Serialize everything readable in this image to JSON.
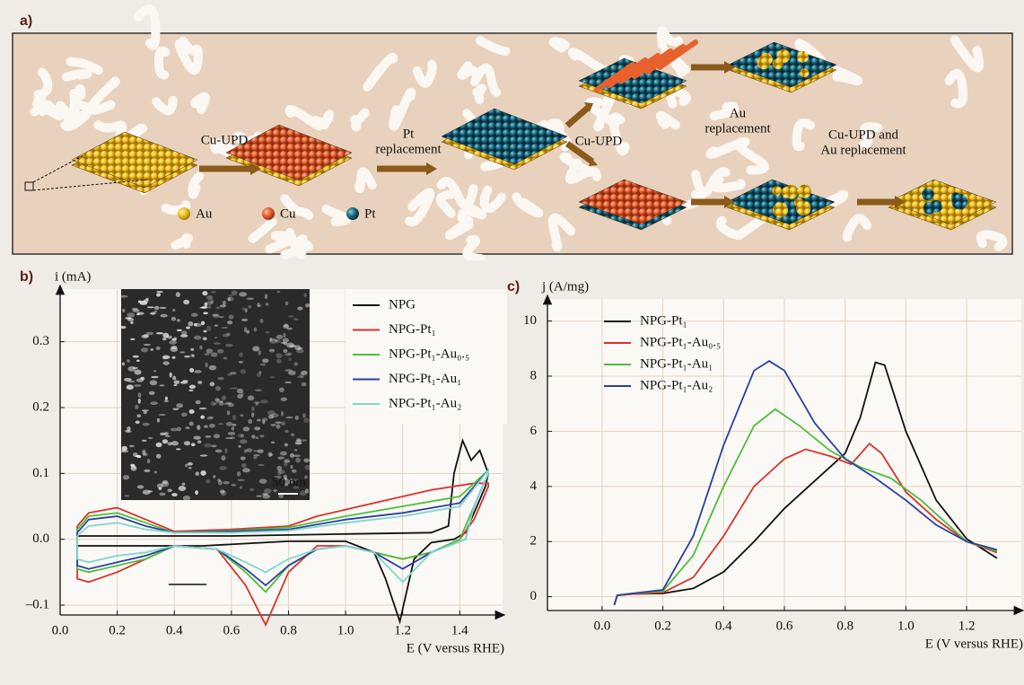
{
  "diagram": {
    "panel_label": "a)",
    "steps": [
      {
        "lines": [
          "Cu-UPD"
        ]
      },
      {
        "lines": [
          "Pt",
          "replacement"
        ]
      },
      {
        "lines": [
          "Cu-UPD"
        ]
      },
      {
        "lines": [
          "Au",
          "replacement"
        ]
      },
      {
        "lines": [
          "Cu-UPD and",
          "Au replacement"
        ]
      }
    ],
    "legend": [
      "Au",
      "Cu",
      "Pt"
    ]
  },
  "chart_data": [
    {
      "type": "line",
      "label": "b)",
      "y_label": "i (mA)",
      "x_label": "E (V versus RHE)",
      "inset_scale": "50 nm",
      "xlim": [
        0,
        1.55
      ],
      "ylim": [
        -0.115,
        0.38
      ],
      "xticks": [
        {
          "value": 0,
          "label": "0.0"
        },
        0.2,
        0.4,
        0.6,
        0.8,
        {
          "value": 1,
          "label": "1.0"
        },
        1.2,
        1.4
      ],
      "yticks": [
        {
          "value": -0.1,
          "label": "–0.1"
        },
        {
          "value": 0,
          "label": "0.0"
        },
        0.1,
        0.2,
        0.3
      ],
      "grid": true,
      "series": [
        {
          "name": "NPG",
          "color": "#111111",
          "x": [
            0.06,
            0.3,
            0.6,
            1.0,
            1.3,
            1.36,
            1.38,
            1.41,
            1.44,
            1.47,
            1.5,
            1.49,
            1.42,
            1.38,
            1.3,
            1.24,
            1.19,
            1.14,
            1.1,
            1.0,
            0.8,
            0.5,
            0.06,
            0.06
          ],
          "values": [
            0.005,
            0.005,
            0.005,
            0.008,
            0.01,
            0.02,
            0.1,
            0.15,
            0.12,
            0.135,
            0.1,
            0.08,
            0.01,
            0.0,
            -0.005,
            -0.03,
            -0.125,
            -0.06,
            -0.02,
            -0.003,
            -0.003,
            -0.01,
            -0.01,
            0.005
          ]
        },
        {
          "name": "NPG-Pt₁",
          "color": "#d8322a",
          "x": [
            0.06,
            0.1,
            0.2,
            0.3,
            0.4,
            0.6,
            0.8,
            0.9,
            1.1,
            1.3,
            1.45,
            1.5,
            1.5,
            1.45,
            1.4,
            1.3,
            1.2,
            1.1,
            1.0,
            0.9,
            0.8,
            0.72,
            0.65,
            0.55,
            0.4,
            0.3,
            0.2,
            0.1,
            0.06,
            0.06
          ],
          "values": [
            0.02,
            0.04,
            0.048,
            0.03,
            0.012,
            0.015,
            0.02,
            0.035,
            0.055,
            0.075,
            0.085,
            0.085,
            0.08,
            0.03,
            0.0,
            -0.02,
            -0.03,
            -0.02,
            -0.01,
            -0.01,
            -0.05,
            -0.13,
            -0.07,
            -0.015,
            -0.01,
            -0.03,
            -0.05,
            -0.065,
            -0.06,
            0.02
          ]
        },
        {
          "name": "NPG-Pt₁-Au₀.₅",
          "color": "#4cbf3a",
          "x": [
            0.06,
            0.1,
            0.2,
            0.3,
            0.4,
            0.6,
            0.8,
            1.0,
            1.2,
            1.4,
            1.5,
            1.5,
            1.45,
            1.4,
            1.3,
            1.2,
            1.1,
            1.0,
            0.9,
            0.8,
            0.72,
            0.65,
            0.55,
            0.4,
            0.3,
            0.2,
            0.1,
            0.06,
            0.06
          ],
          "values": [
            0.015,
            0.035,
            0.04,
            0.025,
            0.01,
            0.013,
            0.018,
            0.035,
            0.05,
            0.065,
            0.105,
            0.1,
            0.05,
            0.0,
            -0.02,
            -0.03,
            -0.02,
            -0.01,
            -0.015,
            -0.04,
            -0.08,
            -0.05,
            -0.015,
            -0.01,
            -0.03,
            -0.04,
            -0.05,
            -0.045,
            0.015
          ]
        },
        {
          "name": "NPG-Pt₁-Au₁",
          "color": "#2b3fa0",
          "x": [
            0.06,
            0.1,
            0.2,
            0.3,
            0.4,
            0.6,
            0.8,
            1.0,
            1.2,
            1.4,
            1.5,
            1.5,
            1.45,
            1.42,
            1.3,
            1.2,
            1.1,
            1.0,
            0.9,
            0.8,
            0.72,
            0.65,
            0.55,
            0.4,
            0.3,
            0.2,
            0.1,
            0.06,
            0.06
          ],
          "values": [
            0.01,
            0.03,
            0.035,
            0.02,
            0.01,
            0.012,
            0.015,
            0.03,
            0.04,
            0.055,
            0.105,
            0.1,
            0.05,
            0.0,
            -0.02,
            -0.045,
            -0.02,
            -0.01,
            -0.015,
            -0.04,
            -0.07,
            -0.045,
            -0.015,
            -0.01,
            -0.025,
            -0.035,
            -0.045,
            -0.04,
            0.01
          ]
        },
        {
          "name": "NPG-Pt₁-Au₂",
          "color": "#7fd6cc",
          "x": [
            0.06,
            0.1,
            0.2,
            0.3,
            0.4,
            0.6,
            0.8,
            1.0,
            1.2,
            1.4,
            1.5,
            1.5,
            1.45,
            1.42,
            1.3,
            1.2,
            1.1,
            1.0,
            0.9,
            0.8,
            0.72,
            0.65,
            0.55,
            0.4,
            0.3,
            0.2,
            0.1,
            0.06,
            0.06
          ],
          "values": [
            0.005,
            0.02,
            0.025,
            0.015,
            0.01,
            0.01,
            0.013,
            0.025,
            0.035,
            0.05,
            0.105,
            0.1,
            0.05,
            0.0,
            -0.02,
            -0.065,
            -0.02,
            -0.01,
            -0.015,
            -0.03,
            -0.05,
            -0.035,
            -0.015,
            -0.01,
            -0.02,
            -0.025,
            -0.035,
            -0.03,
            0.005
          ]
        }
      ]
    },
    {
      "type": "line",
      "label": "c)",
      "y_label": "j (A/mg)",
      "x_label": "E (V versus RHE)",
      "xlim": [
        -0.18,
        1.38
      ],
      "ylim": [
        -0.5,
        10.8
      ],
      "xticks": [
        {
          "value": 0,
          "label": "0.0"
        },
        0.2,
        0.4,
        0.6,
        0.8,
        {
          "value": 1,
          "label": "1.0"
        },
        1.2
      ],
      "yticks": [
        0,
        2,
        4,
        6,
        8,
        10
      ],
      "grid": true,
      "series": [
        {
          "name": "NPG-Pt₁",
          "color": "#111111",
          "x": [
            0.04,
            0.05,
            0.1,
            0.2,
            0.3,
            0.4,
            0.5,
            0.6,
            0.7,
            0.8,
            0.85,
            0.9,
            0.93,
            1.0,
            1.1,
            1.2,
            1.3
          ],
          "values": [
            -0.3,
            0.05,
            0.1,
            0.12,
            0.3,
            0.9,
            2.0,
            3.2,
            4.2,
            5.2,
            6.5,
            8.5,
            8.4,
            6.0,
            3.5,
            2.1,
            1.4
          ]
        },
        {
          "name": "NPG-Pt₁-Au₀.₅",
          "color": "#d8322a",
          "x": [
            0.04,
            0.05,
            0.1,
            0.2,
            0.3,
            0.4,
            0.5,
            0.6,
            0.67,
            0.75,
            0.82,
            0.88,
            0.92,
            1.0,
            1.1,
            1.2,
            1.3
          ],
          "values": [
            -0.3,
            0.05,
            0.1,
            0.15,
            0.7,
            2.2,
            4.0,
            5.0,
            5.35,
            5.1,
            4.8,
            5.55,
            5.2,
            3.8,
            2.8,
            2.0,
            1.6
          ]
        },
        {
          "name": "NPG-Pt₁-Au₁",
          "color": "#4cbf3a",
          "x": [
            0.04,
            0.05,
            0.1,
            0.2,
            0.3,
            0.4,
            0.5,
            0.57,
            0.65,
            0.75,
            0.85,
            0.95,
            1.05,
            1.2,
            1.3
          ],
          "values": [
            -0.3,
            0.05,
            0.12,
            0.2,
            1.5,
            4.0,
            6.2,
            6.8,
            6.2,
            5.3,
            4.7,
            4.3,
            3.5,
            2.0,
            1.65
          ]
        },
        {
          "name": "NPG-Pt₁-Au₂",
          "color": "#2b3fa0",
          "x": [
            0.04,
            0.05,
            0.1,
            0.2,
            0.3,
            0.4,
            0.5,
            0.55,
            0.6,
            0.7,
            0.8,
            0.9,
            1.0,
            1.1,
            1.2,
            1.3
          ],
          "values": [
            -0.3,
            0.05,
            0.12,
            0.25,
            2.2,
            5.5,
            8.2,
            8.55,
            8.2,
            6.3,
            5.0,
            4.3,
            3.5,
            2.6,
            2.0,
            1.7
          ]
        }
      ]
    }
  ]
}
